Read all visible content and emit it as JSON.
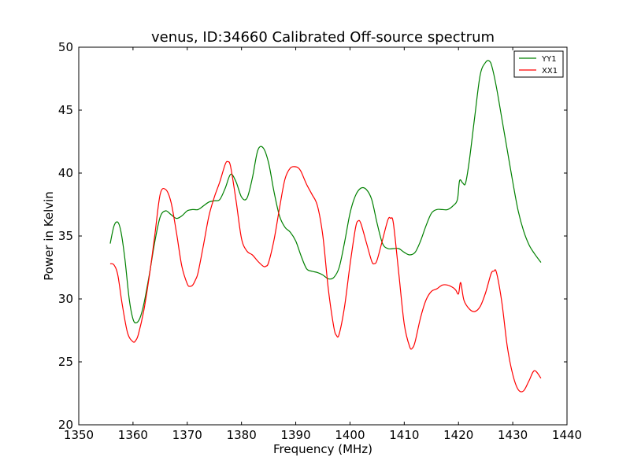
{
  "chart_data": {
    "type": "line",
    "title": "venus, ID:34660 Calibrated Off-source spectrum",
    "xlabel": "Frequency (MHz)",
    "ylabel": "Power in Kelvin",
    "xlim": [
      1350,
      1440
    ],
    "ylim": [
      20,
      50
    ],
    "xticks": [
      1350,
      1360,
      1370,
      1380,
      1390,
      1400,
      1410,
      1420,
      1430,
      1440
    ],
    "yticks": [
      20,
      25,
      30,
      35,
      40,
      45,
      50
    ],
    "grid": false,
    "legend_position": "top-right",
    "series": [
      {
        "name": "YY1",
        "color": "#008000",
        "x": [
          1355.8,
          1356.5,
          1357.2,
          1357.8,
          1358.5,
          1359.3,
          1360.0,
          1360.6,
          1361.3,
          1362.0,
          1363.0,
          1364.0,
          1365.0,
          1366.0,
          1367.0,
          1368.0,
          1369.0,
          1370.0,
          1371.0,
          1372.0,
          1373.0,
          1374.0,
          1375.0,
          1376.0,
          1377.0,
          1378.0,
          1379.0,
          1380.0,
          1381.0,
          1382.0,
          1383.0,
          1384.0,
          1385.0,
          1386.0,
          1387.0,
          1388.0,
          1389.0,
          1390.0,
          1391.0,
          1392.0,
          1393.0,
          1394.0,
          1395.0,
          1396.0,
          1397.0,
          1398.0,
          1399.0,
          1400.0,
          1401.0,
          1402.0,
          1403.0,
          1404.0,
          1405.0,
          1406.0,
          1407.0,
          1408.0,
          1409.0,
          1410.0,
          1411.0,
          1412.0,
          1413.0,
          1414.0,
          1415.0,
          1416.0,
          1417.0,
          1418.0,
          1419.0,
          1419.8,
          1420.2,
          1420.8,
          1421.3,
          1422.0,
          1423.0,
          1424.0,
          1425.0,
          1425.7,
          1426.2,
          1427.0,
          1428.0,
          1429.0,
          1430.0,
          1431.0,
          1432.0,
          1433.0,
          1434.0,
          1435.2
        ],
        "y": [
          34.4,
          35.8,
          36.1,
          35.3,
          33.2,
          30.0,
          28.4,
          28.1,
          28.5,
          29.6,
          31.9,
          34.5,
          36.5,
          37.0,
          36.7,
          36.4,
          36.6,
          37.0,
          37.1,
          37.1,
          37.4,
          37.7,
          37.8,
          37.9,
          38.8,
          39.9,
          39.3,
          38.1,
          38.0,
          39.6,
          41.8,
          42.0,
          40.8,
          38.5,
          36.6,
          35.7,
          35.3,
          34.6,
          33.4,
          32.4,
          32.2,
          32.1,
          31.9,
          31.6,
          31.7,
          32.5,
          34.5,
          36.8,
          38.2,
          38.8,
          38.7,
          37.9,
          36.0,
          34.4,
          34.0,
          34.0,
          34.0,
          33.7,
          33.5,
          33.7,
          34.6,
          35.8,
          36.8,
          37.1,
          37.1,
          37.1,
          37.4,
          37.9,
          39.4,
          39.2,
          39.2,
          41.0,
          44.5,
          47.8,
          48.8,
          48.9,
          48.4,
          46.8,
          44.3,
          41.8,
          39.3,
          37.0,
          35.4,
          34.3,
          33.6,
          32.9
        ]
      },
      {
        "name": "XX1",
        "color": "#ff0000",
        "x": [
          1355.8,
          1356.5,
          1357.2,
          1358.0,
          1359.0,
          1360.0,
          1360.5,
          1361.0,
          1362.0,
          1363.0,
          1364.0,
          1365.0,
          1366.0,
          1367.0,
          1368.0,
          1369.0,
          1370.0,
          1370.5,
          1371.0,
          1371.5,
          1372.0,
          1373.0,
          1374.0,
          1375.0,
          1376.0,
          1377.0,
          1377.5,
          1378.0,
          1379.0,
          1380.0,
          1381.0,
          1382.0,
          1383.0,
          1384.0,
          1384.5,
          1385.0,
          1386.0,
          1387.0,
          1388.0,
          1389.0,
          1390.0,
          1390.5,
          1391.0,
          1392.0,
          1393.0,
          1394.0,
          1395.0,
          1396.0,
          1397.0,
          1397.5,
          1398.0,
          1399.0,
          1400.0,
          1401.0,
          1401.5,
          1402.0,
          1403.0,
          1404.0,
          1404.5,
          1405.0,
          1406.0,
          1407.0,
          1407.5,
          1408.0,
          1409.0,
          1410.0,
          1411.0,
          1411.5,
          1412.0,
          1413.0,
          1414.0,
          1415.0,
          1416.0,
          1417.0,
          1418.0,
          1419.0,
          1419.5,
          1420.0,
          1420.4,
          1421.0,
          1422.0,
          1423.0,
          1424.0,
          1425.0,
          1426.0,
          1426.5,
          1427.0,
          1428.0,
          1429.0,
          1430.0,
          1431.0,
          1432.0,
          1433.0,
          1434.0,
          1435.2
        ],
        "y": [
          32.8,
          32.7,
          31.9,
          29.6,
          27.3,
          26.6,
          26.7,
          27.2,
          29.1,
          31.8,
          35.0,
          38.3,
          38.7,
          37.7,
          35.3,
          32.6,
          31.2,
          31.0,
          31.1,
          31.5,
          32.1,
          34.3,
          36.6,
          38.1,
          39.3,
          40.7,
          40.9,
          40.5,
          37.8,
          34.8,
          33.8,
          33.5,
          33.0,
          32.6,
          32.6,
          32.9,
          34.7,
          37.2,
          39.5,
          40.4,
          40.5,
          40.4,
          40.1,
          39.1,
          38.3,
          37.4,
          35.0,
          30.8,
          27.8,
          27.1,
          27.2,
          29.4,
          32.7,
          35.6,
          36.2,
          36.0,
          34.5,
          33.0,
          32.8,
          33.1,
          34.7,
          36.3,
          36.4,
          36.0,
          32.0,
          28.0,
          26.2,
          26.1,
          26.6,
          28.5,
          29.9,
          30.6,
          30.8,
          31.1,
          31.1,
          30.9,
          30.7,
          30.4,
          31.3,
          29.9,
          29.2,
          29.0,
          29.4,
          30.5,
          32.0,
          32.2,
          32.1,
          29.7,
          26.2,
          24.0,
          22.8,
          22.7,
          23.5,
          24.3,
          23.7
        ]
      }
    ]
  }
}
